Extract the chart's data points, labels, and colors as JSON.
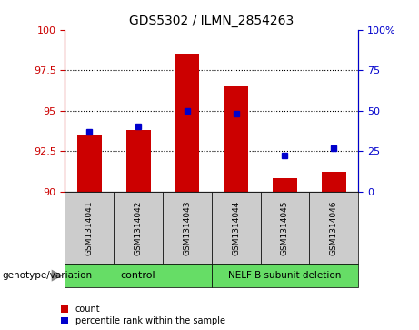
{
  "title": "GDS5302 / ILMN_2854263",
  "samples": [
    "GSM1314041",
    "GSM1314042",
    "GSM1314043",
    "GSM1314044",
    "GSM1314045",
    "GSM1314046"
  ],
  "bar_values": [
    93.5,
    93.8,
    98.5,
    96.5,
    90.8,
    91.2
  ],
  "percentile_values": [
    37,
    40,
    50,
    48,
    22,
    27
  ],
  "ylim_left": [
    90,
    100
  ],
  "ylim_right": [
    0,
    100
  ],
  "yticks_left": [
    90,
    92.5,
    95,
    97.5,
    100
  ],
  "yticks_right": [
    0,
    25,
    50,
    75,
    100
  ],
  "ytick_labels_right": [
    "0",
    "25",
    "50",
    "75",
    "100%"
  ],
  "bar_color": "#cc0000",
  "dot_color": "#0000cc",
  "bg_sample_box": "#cccccc",
  "bg_group_green": "#66dd66",
  "control_label": "control",
  "deletion_label": "NELF B subunit deletion",
  "genotype_label": "genotype/variation",
  "legend_count": "count",
  "legend_percentile": "percentile rank within the sample",
  "bar_width": 0.5
}
